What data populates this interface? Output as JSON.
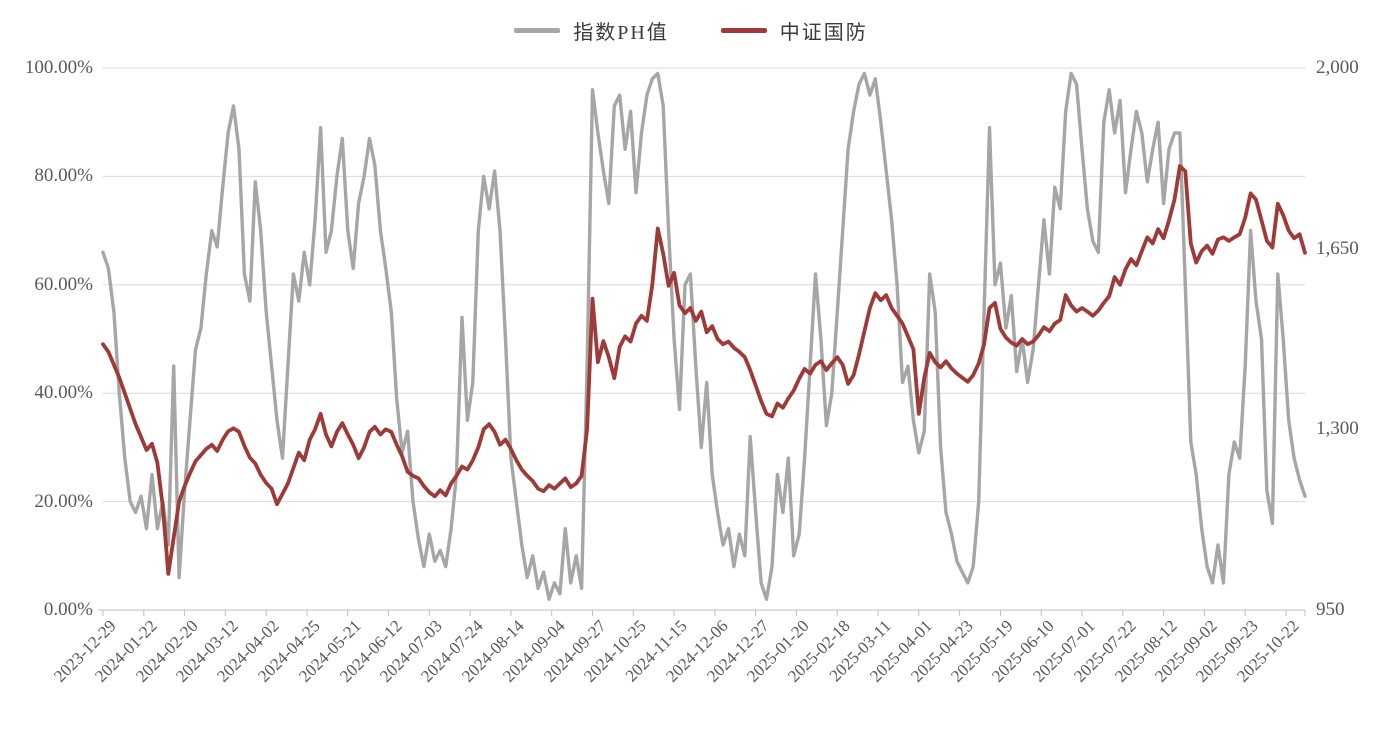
{
  "chart_data": {
    "type": "line",
    "title": "",
    "grid": "horizontal",
    "legend_position": "top-center",
    "background": "#ffffff",
    "gridline_color": "#d9d9d9",
    "axis_line_color": "#bfbfbf",
    "label_color": "#595959",
    "legend": [
      {
        "name": "指数PH值",
        "color": "#a6a6a6"
      },
      {
        "name": "中证国防",
        "color": "#9e3a38"
      }
    ],
    "x_axis": {
      "tick_labels": [
        "2023-12-29",
        "2024-01-22",
        "2024-02-20",
        "2024-03-12",
        "2024-04-02",
        "2024-04-25",
        "2024-05-21",
        "2024-06-12",
        "2024-07-03",
        "2024-07-24",
        "2024-08-14",
        "2024-09-04",
        "2024-09-27",
        "2024-10-25",
        "2024-11-15",
        "2024-12-06",
        "2024-12-27",
        "2025-01-20",
        "2025-02-18",
        "2025-03-11",
        "2025-04-01",
        "2025-04-23",
        "2025-05-19",
        "2025-06-10",
        "2025-07-01",
        "2025-07-22",
        "2025-08-12",
        "2025-09-02",
        "2025-09-23",
        "2025-10-22"
      ],
      "tick_step_trading_days": 15,
      "total_trading_days": 442,
      "days_per_point": 2
    },
    "y_axis_left": {
      "tick_labels": [
        "100.00%",
        "80.00%",
        "60.00%",
        "40.00%",
        "20.00%",
        "0.00%"
      ],
      "tick_values": [
        100,
        80,
        60,
        40,
        20,
        0
      ],
      "min": 0,
      "max": 100,
      "unit": "%"
    },
    "y_axis_right": {
      "tick_labels": [
        "2,000",
        "1,650",
        "1,300",
        "950"
      ],
      "tick_values": [
        2000,
        1650,
        1300,
        950
      ],
      "min": 950,
      "max": 2000
    },
    "series": [
      {
        "name": "指数PH值",
        "axis": "left",
        "color": "#a6a6a6",
        "values": [
          66,
          63,
          55,
          40,
          28,
          20,
          18,
          21,
          15,
          25,
          15,
          20,
          12,
          45,
          6,
          22,
          35,
          48,
          52,
          62,
          70,
          67,
          78,
          88,
          93,
          85,
          62,
          57,
          79,
          70,
          55,
          45,
          35,
          28,
          45,
          62,
          57,
          66,
          60,
          72,
          89,
          66,
          70,
          80,
          87,
          70,
          63,
          75,
          80,
          87,
          82,
          70,
          63,
          55,
          39,
          29,
          33,
          20,
          13,
          8,
          14,
          9,
          11,
          8,
          15,
          25,
          54,
          35,
          42,
          70,
          80,
          74,
          81,
          70,
          50,
          28,
          20,
          12,
          6,
          10,
          4,
          7,
          2,
          5,
          3,
          15,
          5,
          10,
          4,
          45,
          96,
          88,
          81,
          75,
          93,
          95,
          85,
          92,
          77,
          88,
          95,
          98,
          99,
          93,
          70,
          50,
          37,
          60,
          62,
          45,
          30,
          42,
          25,
          18,
          12,
          15,
          8,
          14,
          10,
          32,
          18,
          5,
          2,
          8,
          25,
          18,
          28,
          10,
          14,
          28,
          45,
          62,
          50,
          34,
          40,
          55,
          70,
          85,
          92,
          97,
          99,
          95,
          98,
          90,
          81,
          72,
          60,
          42,
          45,
          35,
          29,
          33,
          62,
          55,
          30,
          18,
          14,
          9,
          7,
          5,
          8,
          20,
          55,
          89,
          60,
          64,
          52,
          58,
          44,
          50,
          42,
          48,
          60,
          72,
          62,
          78,
          74,
          92,
          99,
          97,
          85,
          74,
          68,
          66,
          90,
          96,
          88,
          94,
          77,
          85,
          92,
          88,
          79,
          85,
          90,
          75,
          85,
          88,
          88,
          60,
          31,
          25,
          15,
          8,
          5,
          12,
          5,
          25,
          31,
          28,
          45,
          70,
          57,
          50,
          22,
          16,
          62,
          50,
          35,
          28,
          24,
          21
        ]
      },
      {
        "name": "中证国防",
        "axis": "right",
        "color": "#9e3a38",
        "values": [
          1465,
          1450,
          1425,
          1400,
          1370,
          1340,
          1310,
          1285,
          1260,
          1272,
          1235,
          1150,
          1020,
          1090,
          1160,
          1190,
          1215,
          1238,
          1250,
          1262,
          1270,
          1258,
          1280,
          1296,
          1302,
          1295,
          1268,
          1245,
          1234,
          1212,
          1196,
          1185,
          1155,
          1175,
          1195,
          1225,
          1255,
          1240,
          1280,
          1300,
          1330,
          1290,
          1267,
          1295,
          1312,
          1290,
          1270,
          1244,
          1265,
          1295,
          1305,
          1290,
          1300,
          1295,
          1270,
          1248,
          1218,
          1210,
          1205,
          1190,
          1178,
          1170,
          1182,
          1172,
          1195,
          1210,
          1228,
          1222,
          1240,
          1265,
          1300,
          1310,
          1295,
          1270,
          1280,
          1262,
          1240,
          1222,
          1210,
          1200,
          1185,
          1180,
          1192,
          1185,
          1195,
          1205,
          1188,
          1195,
          1210,
          1300,
          1553,
          1430,
          1471,
          1440,
          1399,
          1460,
          1480,
          1470,
          1505,
          1520,
          1510,
          1580,
          1689,
          1640,
          1578,
          1603,
          1540,
          1525,
          1535,
          1510,
          1528,
          1488,
          1500,
          1475,
          1465,
          1470,
          1458,
          1450,
          1440,
          1415,
          1385,
          1355,
          1330,
          1325,
          1350,
          1342,
          1360,
          1375,
          1398,
          1417,
          1408,
          1425,
          1432,
          1415,
          1428,
          1440,
          1425,
          1388,
          1405,
          1445,
          1490,
          1535,
          1564,
          1550,
          1560,
          1535,
          1520,
          1505,
          1480,
          1455,
          1330,
          1400,
          1448,
          1430,
          1420,
          1432,
          1418,
          1408,
          1400,
          1392,
          1405,
          1428,
          1465,
          1535,
          1545,
          1495,
          1478,
          1468,
          1462,
          1475,
          1465,
          1470,
          1482,
          1498,
          1490,
          1505,
          1512,
          1560,
          1540,
          1528,
          1535,
          1528,
          1520,
          1530,
          1545,
          1558,
          1595,
          1580,
          1610,
          1630,
          1618,
          1645,
          1672,
          1660,
          1688,
          1670,
          1705,
          1745,
          1810,
          1800,
          1660,
          1623,
          1645,
          1656,
          1640,
          1668,
          1672,
          1665,
          1672,
          1678,
          1710,
          1757,
          1745,
          1705,
          1665,
          1652,
          1737,
          1715,
          1685,
          1670,
          1678,
          1642
        ]
      }
    ]
  }
}
